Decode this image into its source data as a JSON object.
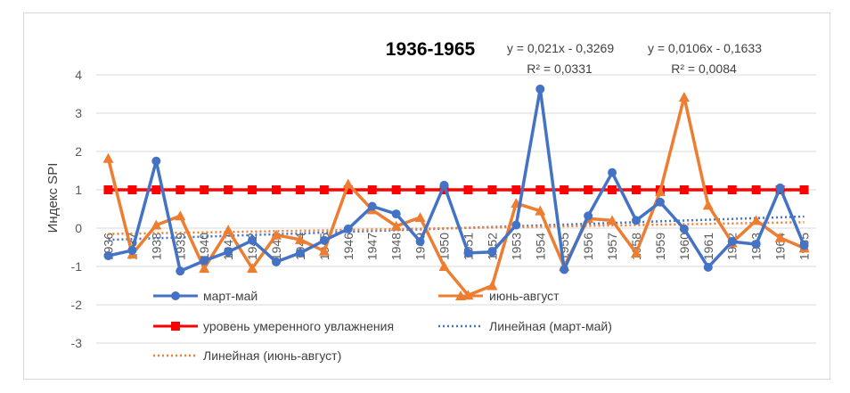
{
  "chart_data": {
    "type": "line",
    "title": "1936-1965",
    "ylabel": "Индекс SPI",
    "xlabel": "",
    "ylim": [
      -3,
      4
    ],
    "yticks": [
      -3,
      -2,
      -1,
      0,
      1,
      2,
      3,
      4
    ],
    "grid": "horizontal",
    "categories": [
      "1936",
      "1937",
      "1938",
      "1939",
      "1940",
      "1941",
      "1942",
      "1943",
      "1944",
      "1945",
      "1946",
      "1947",
      "1948",
      "1949",
      "1950",
      "1951",
      "1952",
      "1953",
      "1954",
      "1955",
      "1956",
      "1957",
      "1958",
      "1959",
      "1960",
      "1961",
      "1962",
      "1963",
      "1964",
      "1965"
    ],
    "series": [
      {
        "name": "март-май",
        "color": "#4472c4",
        "marker": "circle",
        "values": [
          -0.72,
          -0.58,
          1.75,
          -1.12,
          -0.85,
          -0.62,
          -0.32,
          -0.88,
          -0.65,
          -0.32,
          -0.02,
          0.57,
          0.37,
          -0.35,
          1.12,
          -0.65,
          -0.62,
          0.08,
          3.63,
          -1.08,
          0.32,
          1.45,
          0.2,
          0.68,
          -0.02,
          -1.02,
          -0.35,
          -0.42,
          1.05,
          -0.45
        ]
      },
      {
        "name": "июнь-август",
        "color": "#ed7d31",
        "marker": "triangle",
        "values": [
          1.82,
          -0.68,
          0.08,
          0.32,
          -1.05,
          -0.05,
          -1.05,
          -0.18,
          -0.3,
          -0.6,
          1.15,
          0.48,
          0.05,
          0.28,
          -1.0,
          -1.75,
          -1.5,
          0.65,
          0.45,
          -1.0,
          0.25,
          0.2,
          -0.65,
          0.95,
          3.42,
          0.6,
          -0.38,
          0.2,
          -0.25,
          -0.52
        ]
      },
      {
        "name": "уровень умеренного увлажнения",
        "color": "#ff0000",
        "marker": "square",
        "values": [
          1,
          1,
          1,
          1,
          1,
          1,
          1,
          1,
          1,
          1,
          1,
          1,
          1,
          1,
          1,
          1,
          1,
          1,
          1,
          1,
          1,
          1,
          1,
          1,
          1,
          1,
          1,
          1,
          1,
          1
        ]
      }
    ],
    "trendlines": [
      {
        "name": "Линейная (март-май)",
        "color": "#4472c4",
        "style": "dotted",
        "slope": 0.021,
        "intercept": -0.3269,
        "equation": "y = 0,021x - 0,3269",
        "r2": "R² = 0,0331"
      },
      {
        "name": "Линейная (июнь-август)",
        "color": "#ed7d31",
        "style": "dotted",
        "slope": 0.0106,
        "intercept": -0.1633,
        "equation": "y = 0,0106x - 0,1633",
        "r2": "R² = 0,0084"
      }
    ],
    "legend": "bottom"
  }
}
